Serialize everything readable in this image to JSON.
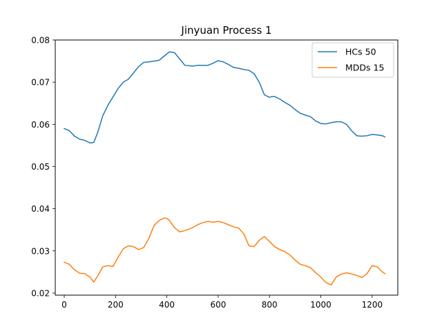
{
  "chart_data": {
    "type": "line",
    "title": "Jinyuan Process 1",
    "xlabel": "",
    "ylabel": "",
    "xlim": [
      -35,
      1300
    ],
    "ylim": [
      0.0195,
      0.08
    ],
    "xticks": [
      0,
      200,
      400,
      600,
      800,
      1000,
      1200
    ],
    "yticks": [
      0.02,
      0.03,
      0.04,
      0.05,
      0.06,
      0.07,
      0.08
    ],
    "ytick_labels": [
      "0.02",
      "0.03",
      "0.04",
      "0.05",
      "0.06",
      "0.07",
      "0.08"
    ],
    "grid": false,
    "legend_position": "upper right",
    "series": [
      {
        "name": "HCs 50",
        "color": "#1f77b4",
        "x": [
          0,
          20,
          40,
          60,
          80,
          100,
          115,
          130,
          150,
          170,
          190,
          210,
          230,
          250,
          270,
          290,
          310,
          330,
          350,
          370,
          390,
          410,
          430,
          450,
          470,
          500,
          520,
          540,
          560,
          580,
          600,
          620,
          640,
          660,
          680,
          700,
          720,
          740,
          760,
          780,
          800,
          810,
          820,
          840,
          860,
          880,
          900,
          920,
          940,
          960,
          980,
          1000,
          1020,
          1040,
          1060,
          1080,
          1100,
          1120,
          1140,
          1160,
          1180,
          1200,
          1220,
          1240,
          1250
        ],
        "values": [
          0.059,
          0.0585,
          0.0572,
          0.0565,
          0.0562,
          0.0556,
          0.0557,
          0.058,
          0.062,
          0.0645,
          0.0665,
          0.0685,
          0.07,
          0.0707,
          0.0722,
          0.0737,
          0.0747,
          0.0748,
          0.075,
          0.0752,
          0.0762,
          0.0772,
          0.077,
          0.0755,
          0.074,
          0.0738,
          0.074,
          0.074,
          0.074,
          0.0745,
          0.0751,
          0.0748,
          0.0742,
          0.0735,
          0.0733,
          0.073,
          0.0728,
          0.072,
          0.07,
          0.067,
          0.0664,
          0.0666,
          0.0666,
          0.066,
          0.0652,
          0.0645,
          0.0635,
          0.0626,
          0.0622,
          0.0618,
          0.0608,
          0.0602,
          0.0601,
          0.0604,
          0.0606,
          0.0606,
          0.06,
          0.0585,
          0.0573,
          0.0572,
          0.0573,
          0.0576,
          0.0575,
          0.0573,
          0.057
        ]
      },
      {
        "name": "MDDs 15",
        "color": "#ff7f0e",
        "x": [
          0,
          20,
          40,
          60,
          80,
          100,
          115,
          130,
          150,
          170,
          190,
          210,
          230,
          250,
          270,
          290,
          310,
          330,
          350,
          370,
          390,
          400,
          410,
          430,
          450,
          470,
          500,
          520,
          540,
          560,
          580,
          600,
          620,
          640,
          660,
          680,
          700,
          720,
          740,
          760,
          780,
          800,
          820,
          840,
          860,
          880,
          900,
          920,
          940,
          960,
          980,
          1000,
          1020,
          1040,
          1060,
          1080,
          1100,
          1120,
          1140,
          1160,
          1180,
          1200,
          1220,
          1240,
          1250
        ],
        "values": [
          0.0273,
          0.0268,
          0.0255,
          0.0247,
          0.0246,
          0.0238,
          0.0226,
          0.024,
          0.0262,
          0.0265,
          0.0263,
          0.0285,
          0.0305,
          0.0312,
          0.031,
          0.0303,
          0.0308,
          0.033,
          0.036,
          0.0372,
          0.0378,
          0.0377,
          0.0372,
          0.0355,
          0.0345,
          0.0348,
          0.0355,
          0.0362,
          0.0367,
          0.037,
          0.0368,
          0.037,
          0.0367,
          0.0362,
          0.0357,
          0.0354,
          0.034,
          0.0312,
          0.031,
          0.0325,
          0.0334,
          0.0322,
          0.031,
          0.0303,
          0.0298,
          0.029,
          0.0278,
          0.0268,
          0.0265,
          0.026,
          0.0248,
          0.0238,
          0.0225,
          0.0219,
          0.0238,
          0.0245,
          0.0248,
          0.0245,
          0.0242,
          0.0237,
          0.0246,
          0.0265,
          0.0262,
          0.025,
          0.0246
        ]
      }
    ]
  }
}
